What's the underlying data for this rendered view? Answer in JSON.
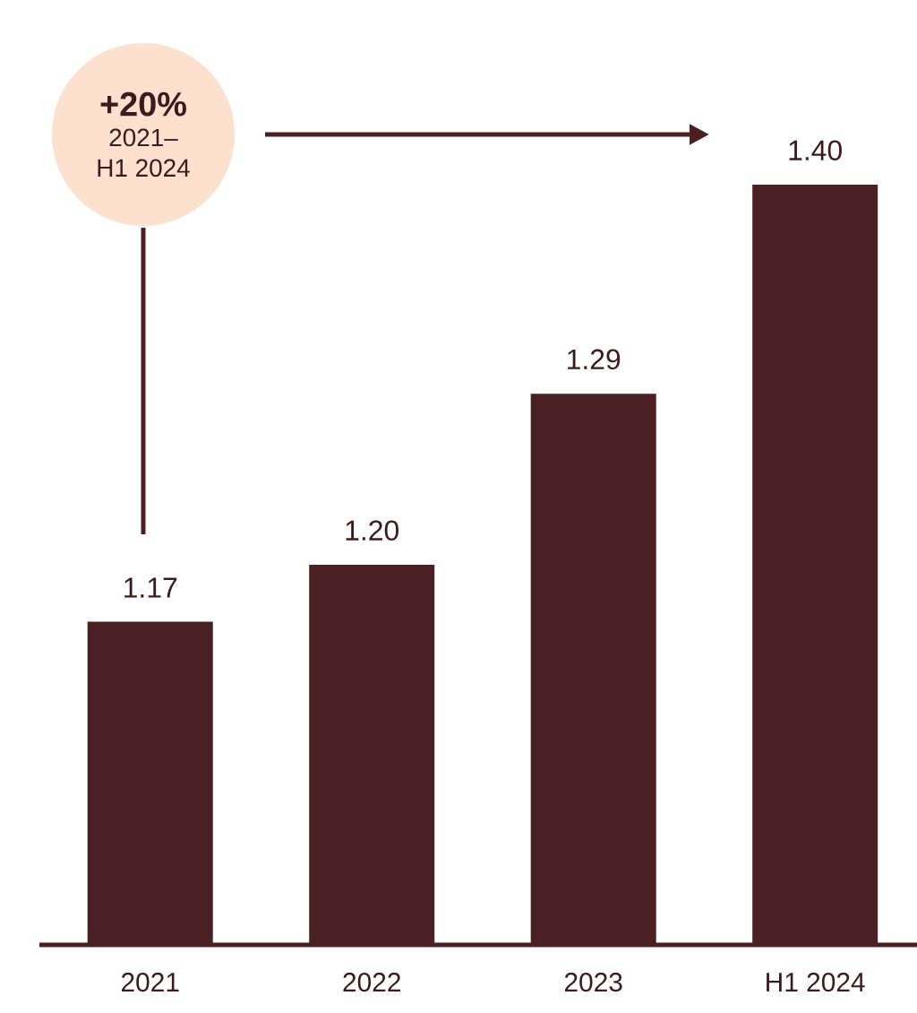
{
  "chart_data": {
    "type": "bar",
    "categories": [
      "2021",
      "2022",
      "2023",
      "H1 2024"
    ],
    "values": [
      1.17,
      1.2,
      1.29,
      1.4
    ],
    "color": "#4a2022",
    "ylim": [
      1.0,
      1.4
    ],
    "value_labels": [
      "1.17",
      "1.20",
      "1.29",
      "1.40"
    ],
    "annotations": [
      "+20%",
      "2021–",
      "H1 2024"
    ]
  }
}
